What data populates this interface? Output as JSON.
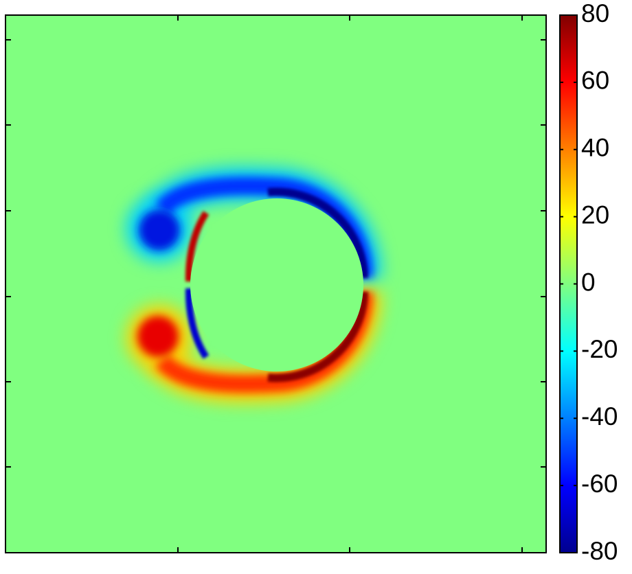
{
  "chart_data": {
    "type": "heatmap",
    "clim": [
      -80,
      80
    ],
    "cticks": [
      -80,
      -60,
      -40,
      -20,
      0,
      20,
      40,
      60,
      80
    ],
    "colormap": [
      "#00008f",
      "#0000ff",
      "#0080ff",
      "#00ffff",
      "#80ff80",
      "#ffff00",
      "#ff8000",
      "#ff0000",
      "#800000"
    ]
  }
}
